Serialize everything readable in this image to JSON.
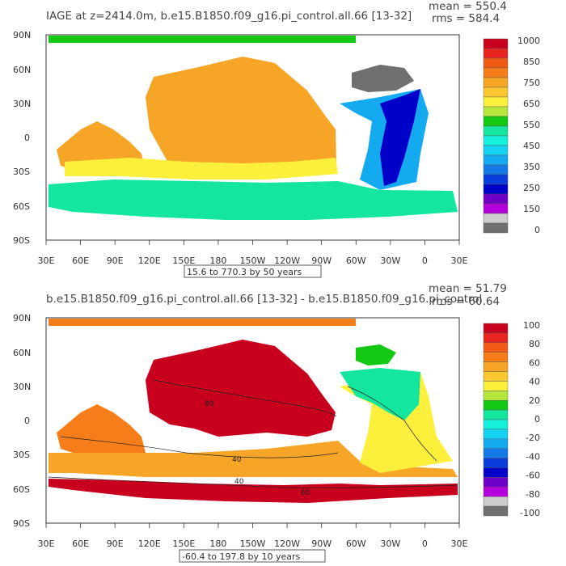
{
  "panels": [
    {
      "title": "IAGE at z=2414.0m, b.e15.B1850.f09_g16.pi_control.all.66 [13-32]",
      "mean": "mean = 550.4",
      "rms": "rms = 584.4",
      "range_note": "15.6 to 770.3 by 50 years",
      "lat_labels": [
        "90N",
        "60N",
        "30N",
        "0",
        "30S",
        "60S",
        "90S"
      ],
      "lon_labels": [
        "30E",
        "60E",
        "90E",
        "120E",
        "150E",
        "180",
        "150W",
        "120W",
        "90W",
        "60W",
        "30W",
        "0",
        "30E"
      ],
      "colorbar": {
        "labels": [
          "1000",
          "850",
          "750",
          "650",
          "550",
          "450",
          "350",
          "250",
          "150",
          "0"
        ],
        "colors": [
          "#c8001e",
          "#e8241e",
          "#f05a14",
          "#f57d1a",
          "#f7a526",
          "#fbc832",
          "#fdf03c",
          "#b4e63c",
          "#14c814",
          "#14e6a0",
          "#14f0dc",
          "#14d2f0",
          "#14aaf0",
          "#1478e6",
          "#0a3cdc",
          "#0000c8",
          "#6e00c8",
          "#b400dc",
          "#cccccc",
          "#707070"
        ]
      },
      "field_colors": {
        "pacific": "#f7a526",
        "arctic": "#14c814",
        "south": "#14e6a0",
        "atl_north": "#0000c8",
        "atl_mid": "#14aaf0",
        "labrador": "#707070"
      }
    },
    {
      "title": "b.e15.B1850.f09_g16.pi_control.all.66 [13-32] - b.e15.B1850.f09_g16.pi_control",
      "mean": "mean = 51.79",
      "rms": "rms = 60.64",
      "range_note": "-60.4 to 197.8 by 10 years",
      "lat_labels": [
        "90N",
        "60N",
        "30N",
        "0",
        "30S",
        "60S",
        "90S"
      ],
      "lon_labels": [
        "30E",
        "60E",
        "90E",
        "120E",
        "150E",
        "180",
        "150W",
        "120W",
        "90W",
        "60W",
        "30W",
        "0",
        "30E"
      ],
      "colorbar": {
        "labels": [
          "100",
          "80",
          "60",
          "40",
          "20",
          "0",
          "-20",
          "-40",
          "-60",
          "-80",
          "-100"
        ],
        "colors": [
          "#c8001e",
          "#e8241e",
          "#f05a14",
          "#f57d1a",
          "#f7a526",
          "#fbc832",
          "#fdf03c",
          "#b4e63c",
          "#14c814",
          "#14e6a0",
          "#14f0dc",
          "#14d2f0",
          "#14aaf0",
          "#1478e6",
          "#0a3cdc",
          "#0000c8",
          "#6e00c8",
          "#b400dc",
          "#cccccc",
          "#707070"
        ]
      },
      "contour_labels": [
        "80",
        "40",
        "40",
        "60"
      ],
      "field_colors": {
        "pacific": "#c8001e",
        "arctic": "#f57d1a",
        "south": "#f7a526",
        "atl_north": "#14e6a0",
        "atl_mid": "#fdf03c",
        "labrador": "#14c814"
      }
    }
  ]
}
